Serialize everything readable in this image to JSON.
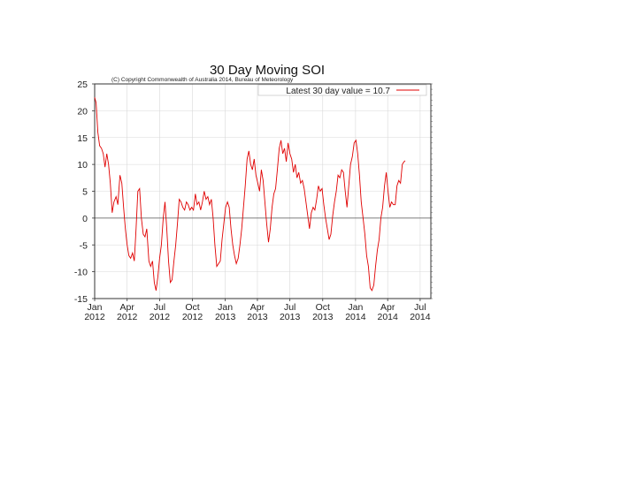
{
  "chart_data": {
    "type": "line",
    "title": "30 Day Moving SOI",
    "copyright": "(C) Copyright Commonwealth of Australia 2014, Bureau of Meteorology",
    "legend": {
      "label": "Latest 30 day value = 10.7",
      "position": "top-right",
      "color": "#e00000"
    },
    "xlabel": "",
    "ylabel": "",
    "ylim": [
      -15,
      25
    ],
    "yticks": [
      25,
      20,
      15,
      10,
      5,
      0,
      -5,
      -10,
      -15
    ],
    "x_range": [
      "2012-01-01",
      "2014-07-31"
    ],
    "xticks": [
      {
        "month": "Jan",
        "year": "2012",
        "date": "2012-01-01"
      },
      {
        "month": "Apr",
        "year": "2012",
        "date": "2012-04-01"
      },
      {
        "month": "Jul",
        "year": "2012",
        "date": "2012-07-01"
      },
      {
        "month": "Oct",
        "year": "2012",
        "date": "2012-10-01"
      },
      {
        "month": "Jan",
        "year": "2013",
        "date": "2013-01-01"
      },
      {
        "month": "Apr",
        "year": "2013",
        "date": "2013-04-01"
      },
      {
        "month": "Jul",
        "year": "2013",
        "date": "2013-07-01"
      },
      {
        "month": "Oct",
        "year": "2013",
        "date": "2013-10-01"
      },
      {
        "month": "Jan",
        "year": "2014",
        "date": "2014-01-01"
      },
      {
        "month": "Apr",
        "year": "2014",
        "date": "2014-04-01"
      },
      {
        "month": "Jul",
        "year": "2014",
        "date": "2014-07-01"
      }
    ],
    "grid": true,
    "series": [
      {
        "color": "#e00000",
        "points": [
          [
            "2012-01-01",
            22.5
          ],
          [
            "2012-01-05",
            21.5
          ],
          [
            "2012-01-10",
            16.0
          ],
          [
            "2012-01-15",
            13.5
          ],
          [
            "2012-01-20",
            13.0
          ],
          [
            "2012-01-25",
            12.0
          ],
          [
            "2012-01-30",
            9.5
          ],
          [
            "2012-02-04",
            12.0
          ],
          [
            "2012-02-09",
            10.0
          ],
          [
            "2012-02-14",
            6.5
          ],
          [
            "2012-02-19",
            1.0
          ],
          [
            "2012-02-24",
            3.0
          ],
          [
            "2012-03-01",
            4.0
          ],
          [
            "2012-03-06",
            2.5
          ],
          [
            "2012-03-12",
            8.0
          ],
          [
            "2012-03-17",
            6.5
          ],
          [
            "2012-03-22",
            2.0
          ],
          [
            "2012-03-27",
            -2.0
          ],
          [
            "2012-04-01",
            -5.0
          ],
          [
            "2012-04-06",
            -7.0
          ],
          [
            "2012-04-11",
            -7.5
          ],
          [
            "2012-04-16",
            -6.5
          ],
          [
            "2012-04-21",
            -8.0
          ],
          [
            "2012-04-26",
            -2.0
          ],
          [
            "2012-05-01",
            5.0
          ],
          [
            "2012-05-06",
            5.5
          ],
          [
            "2012-05-11",
            0.0
          ],
          [
            "2012-05-16",
            -3.0
          ],
          [
            "2012-05-21",
            -3.5
          ],
          [
            "2012-05-26",
            -2.0
          ],
          [
            "2012-06-01",
            -8.0
          ],
          [
            "2012-06-06",
            -9.0
          ],
          [
            "2012-06-11",
            -8.0
          ],
          [
            "2012-06-16",
            -12.0
          ],
          [
            "2012-06-21",
            -13.5
          ],
          [
            "2012-06-26",
            -11.0
          ],
          [
            "2012-07-01",
            -7.5
          ],
          [
            "2012-07-06",
            -5.0
          ],
          [
            "2012-07-11",
            0.0
          ],
          [
            "2012-07-16",
            3.0
          ],
          [
            "2012-07-21",
            -2.0
          ],
          [
            "2012-07-26",
            -8.0
          ],
          [
            "2012-07-31",
            -12.0
          ],
          [
            "2012-08-05",
            -11.5
          ],
          [
            "2012-08-10",
            -8.0
          ],
          [
            "2012-08-15",
            -5.0
          ],
          [
            "2012-08-20",
            -1.0
          ],
          [
            "2012-08-25",
            3.5
          ],
          [
            "2012-08-30",
            3.0
          ],
          [
            "2012-09-04",
            2.0
          ],
          [
            "2012-09-09",
            1.5
          ],
          [
            "2012-09-14",
            3.0
          ],
          [
            "2012-09-19",
            2.5
          ],
          [
            "2012-09-24",
            1.5
          ],
          [
            "2012-09-29",
            2.0
          ],
          [
            "2012-10-04",
            1.5
          ],
          [
            "2012-10-09",
            4.5
          ],
          [
            "2012-10-14",
            2.5
          ],
          [
            "2012-10-19",
            3.0
          ],
          [
            "2012-10-24",
            1.5
          ],
          [
            "2012-10-29",
            3.0
          ],
          [
            "2012-11-03",
            5.0
          ],
          [
            "2012-11-08",
            3.5
          ],
          [
            "2012-11-13",
            4.0
          ],
          [
            "2012-11-18",
            2.5
          ],
          [
            "2012-11-23",
            3.5
          ],
          [
            "2012-11-28",
            0.0
          ],
          [
            "2012-12-03",
            -5.0
          ],
          [
            "2012-12-08",
            -9.0
          ],
          [
            "2012-12-13",
            -8.5
          ],
          [
            "2012-12-18",
            -8.0
          ],
          [
            "2012-12-23",
            -4.0
          ],
          [
            "2012-12-28",
            -1.0
          ],
          [
            "2013-01-02",
            2.0
          ],
          [
            "2013-01-07",
            3.0
          ],
          [
            "2013-01-12",
            2.0
          ],
          [
            "2013-01-17",
            -2.0
          ],
          [
            "2013-01-22",
            -5.0
          ],
          [
            "2013-01-27",
            -7.0
          ],
          [
            "2013-02-01",
            -8.5
          ],
          [
            "2013-02-06",
            -7.5
          ],
          [
            "2013-02-11",
            -5.0
          ],
          [
            "2013-02-16",
            -2.0
          ],
          [
            "2013-02-21",
            2.0
          ],
          [
            "2013-02-26",
            6.0
          ],
          [
            "2013-03-03",
            11.0
          ],
          [
            "2013-03-08",
            12.5
          ],
          [
            "2013-03-13",
            10.0
          ],
          [
            "2013-03-18",
            9.0
          ],
          [
            "2013-03-23",
            11.0
          ],
          [
            "2013-03-28",
            8.0
          ],
          [
            "2013-04-02",
            6.5
          ],
          [
            "2013-04-07",
            5.0
          ],
          [
            "2013-04-12",
            9.0
          ],
          [
            "2013-04-17",
            7.0
          ],
          [
            "2013-04-22",
            3.0
          ],
          [
            "2013-04-27",
            -1.0
          ],
          [
            "2013-05-02",
            -4.5
          ],
          [
            "2013-05-07",
            -2.0
          ],
          [
            "2013-05-12",
            2.0
          ],
          [
            "2013-05-17",
            4.5
          ],
          [
            "2013-05-22",
            5.5
          ],
          [
            "2013-05-27",
            9.0
          ],
          [
            "2013-06-01",
            13.0
          ],
          [
            "2013-06-06",
            14.5
          ],
          [
            "2013-06-11",
            12.0
          ],
          [
            "2013-06-16",
            13.0
          ],
          [
            "2013-06-21",
            10.5
          ],
          [
            "2013-06-26",
            14.0
          ],
          [
            "2013-07-01",
            12.0
          ],
          [
            "2013-07-06",
            11.0
          ],
          [
            "2013-07-11",
            8.5
          ],
          [
            "2013-07-16",
            10.0
          ],
          [
            "2013-07-21",
            7.5
          ],
          [
            "2013-07-26",
            8.5
          ],
          [
            "2013-07-31",
            6.5
          ],
          [
            "2013-08-05",
            7.0
          ],
          [
            "2013-08-10",
            5.5
          ],
          [
            "2013-08-15",
            3.0
          ],
          [
            "2013-08-20",
            0.5
          ],
          [
            "2013-08-25",
            -2.0
          ],
          [
            "2013-08-30",
            1.0
          ],
          [
            "2013-09-04",
            2.0
          ],
          [
            "2013-09-09",
            1.5
          ],
          [
            "2013-09-14",
            3.5
          ],
          [
            "2013-09-19",
            6.0
          ],
          [
            "2013-09-24",
            5.0
          ],
          [
            "2013-09-29",
            5.5
          ],
          [
            "2013-10-04",
            2.5
          ],
          [
            "2013-10-09",
            0.0
          ],
          [
            "2013-10-14",
            -2.0
          ],
          [
            "2013-10-19",
            -4.0
          ],
          [
            "2013-10-24",
            -3.0
          ],
          [
            "2013-10-29",
            0.5
          ],
          [
            "2013-11-03",
            3.0
          ],
          [
            "2013-11-08",
            5.0
          ],
          [
            "2013-11-13",
            8.0
          ],
          [
            "2013-11-18",
            7.5
          ],
          [
            "2013-11-23",
            9.0
          ],
          [
            "2013-11-28",
            8.5
          ],
          [
            "2013-12-03",
            5.0
          ],
          [
            "2013-12-08",
            2.0
          ],
          [
            "2013-12-13",
            6.0
          ],
          [
            "2013-12-18",
            10.0
          ],
          [
            "2013-12-23",
            11.5
          ],
          [
            "2013-12-28",
            14.0
          ],
          [
            "2014-01-02",
            14.5
          ],
          [
            "2014-01-07",
            12.0
          ],
          [
            "2014-01-12",
            8.0
          ],
          [
            "2014-01-17",
            3.0
          ],
          [
            "2014-01-22",
            0.0
          ],
          [
            "2014-01-27",
            -3.0
          ],
          [
            "2014-02-01",
            -7.0
          ],
          [
            "2014-02-06",
            -9.0
          ],
          [
            "2014-02-11",
            -13.0
          ],
          [
            "2014-02-16",
            -13.5
          ],
          [
            "2014-02-21",
            -12.5
          ],
          [
            "2014-02-26",
            -9.0
          ],
          [
            "2014-03-03",
            -6.0
          ],
          [
            "2014-03-08",
            -4.0
          ],
          [
            "2014-03-13",
            0.0
          ],
          [
            "2014-03-18",
            2.0
          ],
          [
            "2014-03-23",
            6.0
          ],
          [
            "2014-03-28",
            8.5
          ],
          [
            "2014-04-02",
            5.0
          ],
          [
            "2014-04-07",
            2.0
          ],
          [
            "2014-04-12",
            3.0
          ],
          [
            "2014-04-17",
            2.5
          ],
          [
            "2014-04-22",
            2.5
          ],
          [
            "2014-04-27",
            6.0
          ],
          [
            "2014-05-02",
            7.0
          ],
          [
            "2014-05-07",
            6.5
          ],
          [
            "2014-05-12",
            10.0
          ],
          [
            "2014-05-17",
            10.5
          ],
          [
            "2014-05-20",
            10.7
          ]
        ]
      }
    ]
  }
}
